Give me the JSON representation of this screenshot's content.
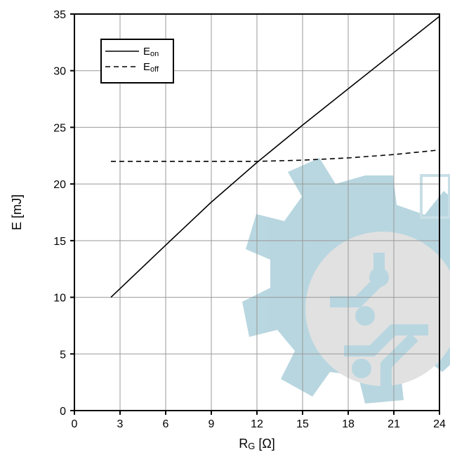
{
  "chart_data": {
    "type": "line",
    "xlabel": "R",
    "xlabel_sub": "G",
    "xlabel_unit": " [Ω]",
    "ylabel": "E [mJ]",
    "xlim": [
      0,
      24
    ],
    "ylim": [
      0,
      35
    ],
    "x_ticks": [
      0,
      3,
      6,
      9,
      12,
      15,
      18,
      21,
      24
    ],
    "y_ticks": [
      0,
      5,
      10,
      15,
      20,
      25,
      30,
      35
    ],
    "grid": true,
    "legend_position": "top-left",
    "series": [
      {
        "name": "E",
        "name_sub": "on",
        "style": "solid",
        "color": "#000000",
        "x": [
          2.4,
          6,
          9,
          12,
          15,
          18,
          21,
          24
        ],
        "y": [
          10,
          14.6,
          18.4,
          21.9,
          25.2,
          28.4,
          31.6,
          34.8
        ]
      },
      {
        "name": "E",
        "name_sub": "off",
        "style": "dashed",
        "color": "#000000",
        "x": [
          2.4,
          6,
          9,
          12,
          15,
          18,
          21,
          24
        ],
        "y": [
          22,
          22,
          22,
          22,
          22.1,
          22.3,
          22.6,
          23
        ]
      }
    ]
  },
  "watermark": {
    "color": "#7fb6c7",
    "icon": "gear-circuit-logo"
  }
}
